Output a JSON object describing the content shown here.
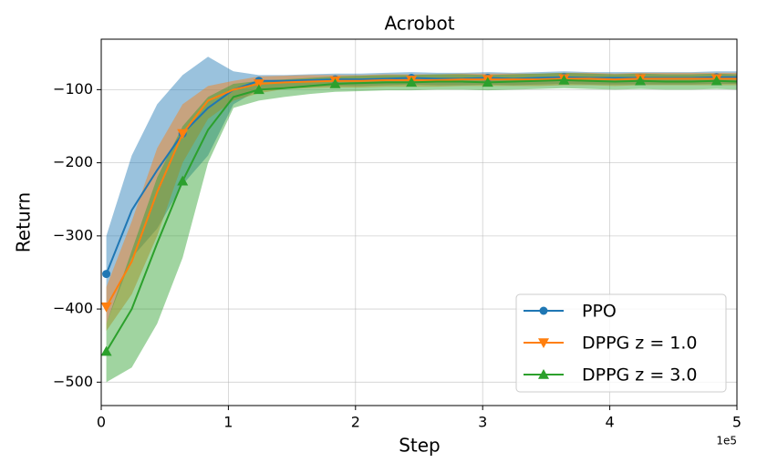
{
  "chart_data": {
    "type": "line",
    "title": "Acrobot",
    "x_label": "Step",
    "y_label": "Return",
    "x_offset_label": "1e5",
    "x": [
      0.04,
      0.24,
      0.44,
      0.64,
      0.84,
      1.04,
      1.24,
      1.44,
      1.64,
      1.84,
      2.04,
      2.24,
      2.44,
      2.64,
      2.84,
      3.04,
      3.24,
      3.44,
      3.64,
      3.84,
      4.04,
      4.24,
      4.44,
      4.64,
      4.84,
      5.0
    ],
    "xlim": [
      0,
      5
    ],
    "xticks": [
      0,
      1,
      2,
      3,
      4,
      5
    ],
    "ylim": [
      -532,
      -31
    ],
    "yticks": [
      {
        "value": -500,
        "label": "−500"
      },
      {
        "value": -400,
        "label": "−400"
      },
      {
        "value": -300,
        "label": "−300"
      },
      {
        "value": -200,
        "label": "−200"
      },
      {
        "value": -100,
        "label": "−100"
      }
    ],
    "grid": true,
    "legend": "lower right",
    "markevery": 3,
    "series": [
      {
        "name": "PPO",
        "color": "#1f77b4",
        "marker": "circle",
        "values": [
          -352,
          -265,
          -210,
          -160,
          -125,
          -100,
          -88,
          -88,
          -87,
          -86,
          -86,
          -85,
          -84,
          -85,
          -85,
          -84,
          -85,
          -84,
          -83,
          -84,
          -84,
          -84,
          -84,
          -84,
          -83,
          -83
        ],
        "lower": [
          -420,
          -330,
          -290,
          -230,
          -190,
          -120,
          -100,
          -97,
          -96,
          -95,
          -95,
          -94,
          -93,
          -94,
          -94,
          -93,
          -94,
          -93,
          -92,
          -93,
          -93,
          -93,
          -93,
          -93,
          -92,
          -92
        ],
        "upper": [
          -300,
          -190,
          -120,
          -80,
          -55,
          -75,
          -80,
          -80,
          -79,
          -78,
          -78,
          -77,
          -76,
          -77,
          -77,
          -76,
          -77,
          -76,
          -75,
          -76,
          -76,
          -76,
          -76,
          -76,
          -75,
          -75
        ]
      },
      {
        "name": "DPPG z = 1.0",
        "color": "#ff7f0e",
        "marker": "triangle-down",
        "values": [
          -397,
          -335,
          -240,
          -160,
          -115,
          -100,
          -92,
          -90,
          -89,
          -88,
          -88,
          -87,
          -87,
          -87,
          -86,
          -86,
          -86,
          -86,
          -85,
          -85,
          -86,
          -85,
          -85,
          -85,
          -85,
          -85
        ],
        "lower": [
          -430,
          -380,
          -300,
          -200,
          -140,
          -115,
          -105,
          -99,
          -98,
          -97,
          -97,
          -96,
          -96,
          -96,
          -95,
          -95,
          -95,
          -95,
          -94,
          -94,
          -95,
          -94,
          -94,
          -94,
          -94,
          -94
        ],
        "upper": [
          -370,
          -280,
          -180,
          -120,
          -95,
          -88,
          -82,
          -81,
          -80,
          -80,
          -80,
          -79,
          -79,
          -79,
          -78,
          -78,
          -78,
          -78,
          -77,
          -77,
          -78,
          -77,
          -77,
          -77,
          -77,
          -77
        ]
      },
      {
        "name": "DPPG z = 3.0",
        "color": "#2ca02c",
        "marker": "triangle-up",
        "values": [
          -458,
          -400,
          -310,
          -225,
          -155,
          -110,
          -100,
          -98,
          -95,
          -92,
          -91,
          -90,
          -90,
          -89,
          -89,
          -90,
          -89,
          -88,
          -87,
          -88,
          -89,
          -88,
          -89,
          -89,
          -88,
          -89
        ],
        "lower": [
          -500,
          -480,
          -420,
          -330,
          -200,
          -125,
          -115,
          -110,
          -106,
          -103,
          -102,
          -101,
          -101,
          -100,
          -100,
          -101,
          -100,
          -99,
          -98,
          -99,
          -100,
          -99,
          -100,
          -100,
          -99,
          -100
        ],
        "upper": [
          -420,
          -320,
          -220,
          -150,
          -110,
          -92,
          -88,
          -86,
          -84,
          -82,
          -81,
          -80,
          -80,
          -79,
          -79,
          -80,
          -79,
          -78,
          -77,
          -78,
          -79,
          -78,
          -79,
          -79,
          -78,
          -79
        ]
      }
    ]
  }
}
